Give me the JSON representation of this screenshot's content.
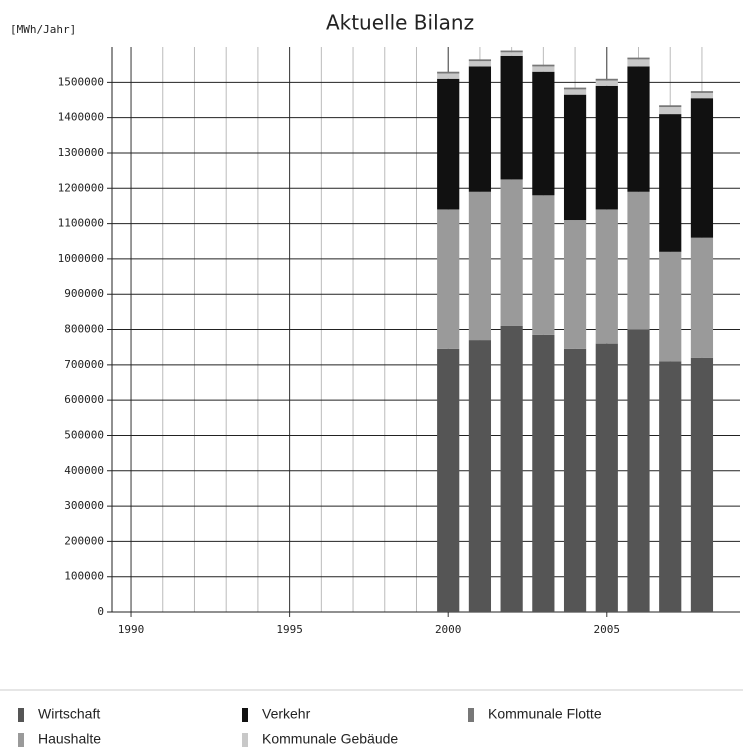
{
  "chart_data": {
    "type": "stacked_bar",
    "title": "Aktuelle Bilanz",
    "y_axis_label": "[MWh/Jahr]",
    "x": [
      2000,
      2001,
      2002,
      2003,
      2004,
      2005,
      2006,
      2007,
      2008
    ],
    "series": [
      {
        "name": "Wirtschaft",
        "color": "#555555",
        "values": [
          745000,
          770000,
          810000,
          785000,
          745000,
          760000,
          800000,
          710000,
          720000
        ]
      },
      {
        "name": "Haushalte",
        "color": "#9a9a9a",
        "values": [
          395000,
          420000,
          415000,
          395000,
          365000,
          380000,
          390000,
          310000,
          340000
        ]
      },
      {
        "name": "Verkehr",
        "color": "#111111",
        "values": [
          370000,
          355000,
          350000,
          350000,
          355000,
          350000,
          355000,
          390000,
          395000
        ]
      },
      {
        "name": "Kommunale Gebäude",
        "color": "#c8c8c8",
        "values": [
          15000,
          15000,
          10000,
          15000,
          15000,
          15000,
          20000,
          20000,
          15000
        ]
      },
      {
        "name": "Kommunale Flotte",
        "color": "#777777",
        "values": [
          5000,
          5000,
          5000,
          5000,
          5000,
          5000,
          5000,
          5000,
          5000
        ]
      }
    ],
    "xlim": [
      1989.4,
      2009.2
    ],
    "xticks": [
      1990,
      1995,
      2000,
      2005
    ],
    "xminorticks": [
      1991,
      1992,
      1993,
      1994,
      1996,
      1997,
      1998,
      1999,
      2001,
      2002,
      2003,
      2004,
      2006,
      2007,
      2008
    ],
    "ylim": [
      0,
      1600000
    ],
    "yticks": [
      0,
      100000,
      200000,
      300000,
      400000,
      500000,
      600000,
      700000,
      800000,
      900000,
      1000000,
      1100000,
      1200000,
      1300000,
      1400000,
      1500000
    ],
    "grid": true,
    "legend": "bottom"
  }
}
